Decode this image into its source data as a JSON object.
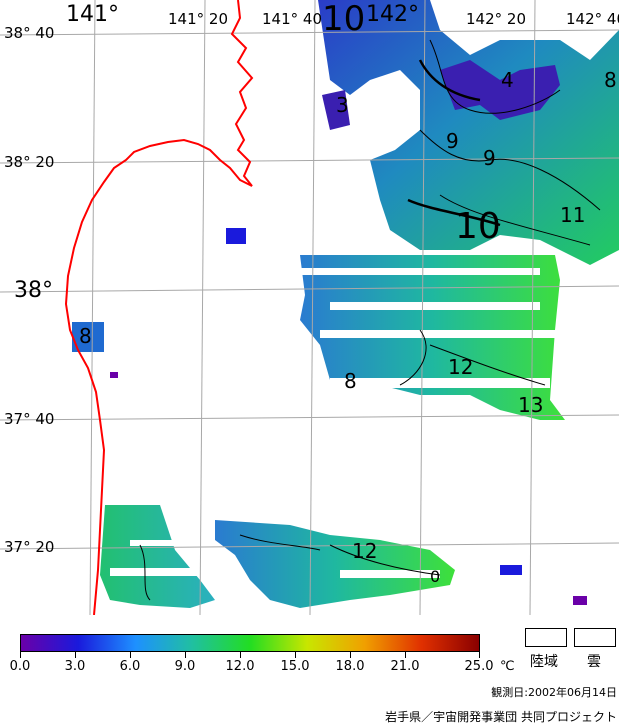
{
  "map": {
    "longitude_labels": [
      "141°",
      "141° 20",
      "141° 40",
      "142°",
      "142° 20",
      "142° 40"
    ],
    "latitude_labels": [
      "38° 40",
      "38° 20",
      "38°",
      "37° 40",
      "37° 20"
    ],
    "contour_labels": [
      "10",
      "9",
      "9",
      "10",
      "11",
      "8",
      "8",
      "12",
      "13",
      "12",
      "4",
      "3",
      "8",
      "0"
    ],
    "coastline_color": "#ff0000",
    "grid_color": "#a8a8a8"
  },
  "legend": {
    "ticks": [
      "0.0",
      "3.0",
      "6.0",
      "9.0",
      "12.0",
      "15.0",
      "18.0",
      "21.0",
      "25.0"
    ],
    "unit": "℃",
    "colors": [
      "#6a00a8",
      "#1a1adc",
      "#1e90ff",
      "#20c0a0",
      "#22dd22",
      "#c8e600",
      "#f0a000",
      "#e03000",
      "#8a0000"
    ],
    "land_label": "陸域",
    "cloud_label": "雲"
  },
  "footer": {
    "observation_date": "観測日:2002年06月14日",
    "credit": "岩手県／宇宙開発事業団 共同プロジェクト"
  }
}
